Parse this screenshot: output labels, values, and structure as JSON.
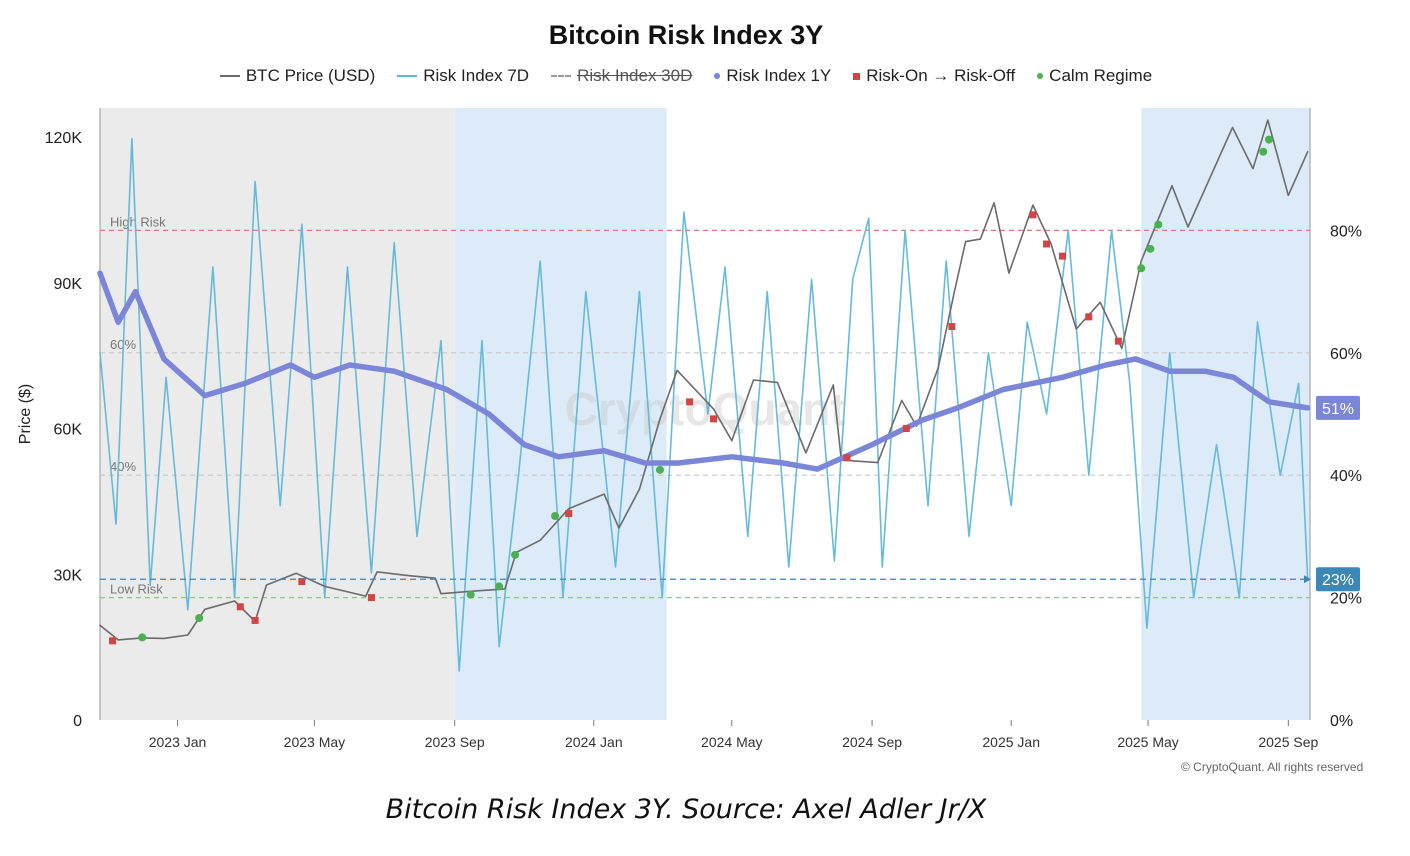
{
  "title": "Bitcoin Risk Index 3Y",
  "caption": "Bitcoin Risk Index 3Y. Source: Axel Adler Jr/X",
  "copyright": "© CryptoQuant. All rights reserved",
  "watermark": "CryptoQuant",
  "legend": [
    {
      "key": "price",
      "label": "BTC Price (USD)",
      "swatch": "line",
      "color": "#6b6b6b",
      "struck": false
    },
    {
      "key": "ri7",
      "label": "Risk Index 7D",
      "swatch": "line",
      "color": "#5fb7d8",
      "struck": false
    },
    {
      "key": "ri30",
      "label": "Risk Index 30D",
      "swatch": "dash",
      "color": "#999999",
      "struck": true
    },
    {
      "key": "ri1y",
      "label": "Risk Index 1Y",
      "swatch": "dot",
      "color": "#7b86d8",
      "struck": false
    },
    {
      "key": "riskoff",
      "label": "Risk-On → Risk-Off",
      "swatch": "square",
      "color": "#d24545",
      "struck": false
    },
    {
      "key": "calm",
      "label": "Calm Regime",
      "swatch": "dot",
      "color": "#4caf50",
      "struck": false
    }
  ],
  "colors": {
    "price": "#6b6b6b",
    "ri7": "#5fb7d8",
    "ri1y": "#7b86d8",
    "riskoff": "#d24545",
    "calm": "#4caf50",
    "shade_gray": "#ebebeb",
    "shade_blue": "#dcebf7",
    "high_line": "#e07a7a",
    "low_line": "#8cc58c",
    "mid_line": "#c8c8c8",
    "now_line": "#3a87b8"
  },
  "chart_data": {
    "type": "line",
    "title": "Bitcoin Risk Index 3Y",
    "x_range": [
      "2022-10-25",
      "2025-09-20"
    ],
    "x_ticks": [
      {
        "date": "2023-01-01",
        "label": "2023 Jan"
      },
      {
        "date": "2023-05-01",
        "label": "2023 May"
      },
      {
        "date": "2023-09-01",
        "label": "2023 Sep"
      },
      {
        "date": "2024-01-01",
        "label": "2024 Jan"
      },
      {
        "date": "2024-05-01",
        "label": "2024 May"
      },
      {
        "date": "2024-09-01",
        "label": "2024 Sep"
      },
      {
        "date": "2025-01-01",
        "label": "2025 Jan"
      },
      {
        "date": "2025-05-01",
        "label": "2025 May"
      },
      {
        "date": "2025-09-01",
        "label": "2025 Sep"
      }
    ],
    "y_left": {
      "label": "Price ($)",
      "min": 0,
      "max": 126000,
      "ticks": [
        {
          "v": 0,
          "label": "0"
        },
        {
          "v": 30000,
          "label": "30K"
        },
        {
          "v": 60000,
          "label": "60K"
        },
        {
          "v": 90000,
          "label": "90K"
        },
        {
          "v": 120000,
          "label": "120K"
        }
      ]
    },
    "y_right": {
      "label": "",
      "min": 0,
      "max": 100,
      "ticks": [
        {
          "v": 0,
          "label": "0%"
        },
        {
          "v": 20,
          "label": "20%"
        },
        {
          "v": 40,
          "label": "40%"
        },
        {
          "v": 60,
          "label": "60%"
        },
        {
          "v": 80,
          "label": "80%"
        }
      ]
    },
    "thresholds": [
      {
        "value": 80,
        "label": "High Risk",
        "style": "high"
      },
      {
        "value": 60,
        "label": "60%",
        "style": "mid"
      },
      {
        "value": 40,
        "label": "40%",
        "style": "mid"
      },
      {
        "value": 20,
        "label": "Low Risk",
        "style": "low"
      }
    ],
    "current": [
      {
        "series": "ri1y",
        "value": 51,
        "label": "51%"
      },
      {
        "series": "ri7",
        "value": 23,
        "label": "23%"
      }
    ],
    "regimes": [
      {
        "start": "2022-10-25",
        "end": "2023-09-01",
        "shade": "gray"
      },
      {
        "start": "2023-09-01",
        "end": "2024-03-05",
        "shade": "blue"
      },
      {
        "start": "2024-03-05",
        "end": "2025-04-25",
        "shade": "white"
      },
      {
        "start": "2025-04-25",
        "end": "2025-09-20",
        "shade": "blue"
      }
    ],
    "series": [
      {
        "name": "BTC Price (USD)",
        "key": "price",
        "axis": "left",
        "points": [
          [
            "2022-10-25",
            19500
          ],
          [
            "2022-11-10",
            16500
          ],
          [
            "2022-12-01",
            16900
          ],
          [
            "2022-12-20",
            16800
          ],
          [
            "2023-01-10",
            17500
          ],
          [
            "2023-01-25",
            22800
          ],
          [
            "2023-02-20",
            24500
          ],
          [
            "2023-03-10",
            20300
          ],
          [
            "2023-03-20",
            27800
          ],
          [
            "2023-04-15",
            30200
          ],
          [
            "2023-05-10",
            27500
          ],
          [
            "2023-06-15",
            25500
          ],
          [
            "2023-06-25",
            30500
          ],
          [
            "2023-07-20",
            29800
          ],
          [
            "2023-08-15",
            29200
          ],
          [
            "2023-08-20",
            26000
          ],
          [
            "2023-09-15",
            26500
          ],
          [
            "2023-10-15",
            27000
          ],
          [
            "2023-10-25",
            34500
          ],
          [
            "2023-11-15",
            37000
          ],
          [
            "2023-12-10",
            43500
          ],
          [
            "2024-01-10",
            46500
          ],
          [
            "2024-01-23",
            39500
          ],
          [
            "2024-02-10",
            47500
          ],
          [
            "2024-02-28",
            62000
          ],
          [
            "2024-03-14",
            72000
          ],
          [
            "2024-04-15",
            64000
          ],
          [
            "2024-05-01",
            57500
          ],
          [
            "2024-05-20",
            70000
          ],
          [
            "2024-06-10",
            69500
          ],
          [
            "2024-07-05",
            55000
          ],
          [
            "2024-07-29",
            69000
          ],
          [
            "2024-08-05",
            53500
          ],
          [
            "2024-09-06",
            53000
          ],
          [
            "2024-09-27",
            65800
          ],
          [
            "2024-10-10",
            60500
          ],
          [
            "2024-10-29",
            72500
          ],
          [
            "2024-11-12",
            88000
          ],
          [
            "2024-11-22",
            98500
          ],
          [
            "2024-12-05",
            99000
          ],
          [
            "2024-12-17",
            106500
          ],
          [
            "2024-12-30",
            92000
          ],
          [
            "2025-01-20",
            106000
          ],
          [
            "2025-02-05",
            98000
          ],
          [
            "2025-02-27",
            80500
          ],
          [
            "2025-03-20",
            86000
          ],
          [
            "2025-04-08",
            76500
          ],
          [
            "2025-04-25",
            94500
          ],
          [
            "2025-05-22",
            110000
          ],
          [
            "2025-06-05",
            101500
          ],
          [
            "2025-07-14",
            122000
          ],
          [
            "2025-08-01",
            113500
          ],
          [
            "2025-08-14",
            123500
          ],
          [
            "2025-09-01",
            108000
          ],
          [
            "2025-09-18",
            117000
          ]
        ]
      },
      {
        "name": "Risk Index 7D",
        "key": "ri7",
        "axis": "right",
        "points": [
          [
            "2022-10-25",
            60
          ],
          [
            "2022-11-08",
            32
          ],
          [
            "2022-11-22",
            95
          ],
          [
            "2022-12-08",
            22
          ],
          [
            "2022-12-22",
            56
          ],
          [
            "2023-01-10",
            18
          ],
          [
            "2023-02-01",
            74
          ],
          [
            "2023-02-20",
            20
          ],
          [
            "2023-03-10",
            88
          ],
          [
            "2023-04-01",
            35
          ],
          [
            "2023-04-20",
            81
          ],
          [
            "2023-05-10",
            20
          ],
          [
            "2023-05-30",
            74
          ],
          [
            "2023-06-20",
            24
          ],
          [
            "2023-07-10",
            78
          ],
          [
            "2023-07-30",
            30
          ],
          [
            "2023-08-20",
            62
          ],
          [
            "2023-09-05",
            8
          ],
          [
            "2023-09-25",
            62
          ],
          [
            "2023-10-10",
            12
          ],
          [
            "2023-10-27",
            40
          ],
          [
            "2023-11-15",
            75
          ],
          [
            "2023-12-05",
            20
          ],
          [
            "2023-12-25",
            70
          ],
          [
            "2024-01-20",
            25
          ],
          [
            "2024-02-10",
            70
          ],
          [
            "2024-03-01",
            20
          ],
          [
            "2024-03-20",
            83
          ],
          [
            "2024-04-10",
            50
          ],
          [
            "2024-04-25",
            74
          ],
          [
            "2024-05-15",
            30
          ],
          [
            "2024-06-01",
            70
          ],
          [
            "2024-06-20",
            25
          ],
          [
            "2024-07-10",
            72
          ],
          [
            "2024-07-30",
            26
          ],
          [
            "2024-08-15",
            72
          ],
          [
            "2024-08-29",
            82
          ],
          [
            "2024-09-10",
            25
          ],
          [
            "2024-09-30",
            80
          ],
          [
            "2024-10-20",
            35
          ],
          [
            "2024-11-05",
            75
          ],
          [
            "2024-11-25",
            30
          ],
          [
            "2024-12-12",
            60
          ],
          [
            "2025-01-01",
            35
          ],
          [
            "2025-01-15",
            65
          ],
          [
            "2025-02-01",
            50
          ],
          [
            "2025-02-20",
            80
          ],
          [
            "2025-03-10",
            40
          ],
          [
            "2025-03-30",
            80
          ],
          [
            "2025-04-15",
            55
          ],
          [
            "2025-04-30",
            15
          ],
          [
            "2025-05-20",
            60
          ],
          [
            "2025-06-10",
            20
          ],
          [
            "2025-06-30",
            45
          ],
          [
            "2025-07-20",
            20
          ],
          [
            "2025-08-05",
            65
          ],
          [
            "2025-08-25",
            40
          ],
          [
            "2025-09-10",
            55
          ],
          [
            "2025-09-18",
            23
          ]
        ]
      },
      {
        "name": "Risk Index 1Y",
        "key": "ri1y",
        "axis": "right",
        "points": [
          [
            "2022-10-25",
            73
          ],
          [
            "2022-11-10",
            65
          ],
          [
            "2022-11-25",
            70
          ],
          [
            "2022-12-20",
            59
          ],
          [
            "2023-01-25",
            53
          ],
          [
            "2023-03-01",
            55
          ],
          [
            "2023-04-10",
            58
          ],
          [
            "2023-05-01",
            56
          ],
          [
            "2023-06-01",
            58
          ],
          [
            "2023-07-10",
            57
          ],
          [
            "2023-08-25",
            54
          ],
          [
            "2023-10-01",
            50
          ],
          [
            "2023-11-01",
            45
          ],
          [
            "2023-12-01",
            43
          ],
          [
            "2024-01-10",
            44
          ],
          [
            "2024-02-15",
            42
          ],
          [
            "2024-03-15",
            42
          ],
          [
            "2024-05-01",
            43
          ],
          [
            "2024-06-15",
            42
          ],
          [
            "2024-07-15",
            41
          ],
          [
            "2024-09-01",
            45
          ],
          [
            "2024-10-15",
            49
          ],
          [
            "2024-11-15",
            51
          ],
          [
            "2024-12-25",
            54
          ],
          [
            "2025-02-15",
            56
          ],
          [
            "2025-03-25",
            58
          ],
          [
            "2025-04-20",
            59
          ],
          [
            "2025-05-20",
            57
          ],
          [
            "2025-06-20",
            57
          ],
          [
            "2025-07-15",
            56
          ],
          [
            "2025-08-15",
            52
          ],
          [
            "2025-09-18",
            51
          ]
        ]
      }
    ],
    "markers": {
      "riskoff": [
        [
          "2022-11-05",
          16300
        ],
        [
          "2023-02-25",
          23300
        ],
        [
          "2023-03-10",
          20500
        ],
        [
          "2023-04-20",
          28500
        ],
        [
          "2023-06-20",
          25200
        ],
        [
          "2023-12-10",
          42500
        ],
        [
          "2024-03-25",
          65500
        ],
        [
          "2024-04-15",
          62000
        ],
        [
          "2024-08-10",
          54000
        ],
        [
          "2024-10-01",
          60000
        ],
        [
          "2024-11-10",
          81000
        ],
        [
          "2025-01-20",
          104000
        ],
        [
          "2025-02-01",
          98000
        ],
        [
          "2025-02-15",
          95500
        ],
        [
          "2025-03-10",
          83000
        ],
        [
          "2025-04-05",
          78000
        ]
      ],
      "calm": [
        [
          "2022-12-01",
          17000
        ],
        [
          "2023-01-20",
          21000
        ],
        [
          "2023-09-15",
          25800
        ],
        [
          "2023-10-10",
          27500
        ],
        [
          "2023-10-24",
          34000
        ],
        [
          "2023-11-28",
          42000
        ],
        [
          "2024-02-28",
          51500
        ],
        [
          "2025-04-25",
          93000
        ],
        [
          "2025-05-03",
          97000
        ],
        [
          "2025-05-10",
          102000
        ],
        [
          "2025-08-10",
          117000
        ],
        [
          "2025-08-15",
          119500
        ]
      ]
    }
  }
}
